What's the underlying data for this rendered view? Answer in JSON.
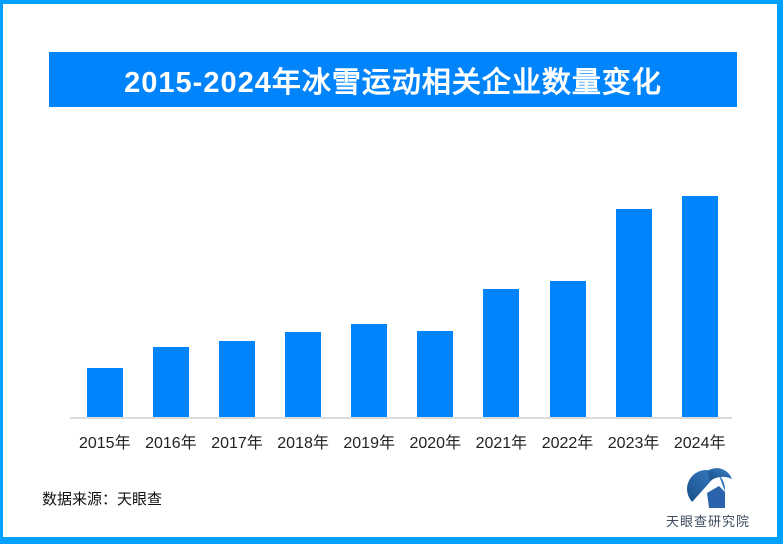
{
  "page": {
    "background_color": "#ffffff",
    "frame_border_color": "#00A0FF"
  },
  "title_banner": {
    "text": "2015-2024年冰雪运动相关企业数量变化",
    "bg_color": "#0084FB",
    "text_color": "#ffffff"
  },
  "chart_data": {
    "type": "bar",
    "title": "2015-2024年冰雪运动相关企业数量变化",
    "categories": [
      "2015年",
      "2016年",
      "2017年",
      "2018年",
      "2019年",
      "2020年",
      "2021年",
      "2022年",
      "2023年",
      "2024年"
    ],
    "values": [
      49,
      70,
      76,
      85,
      93,
      86,
      128,
      136,
      208,
      221
    ],
    "values_unit": "relative bar height in px (no y-axis scale shown in image)",
    "xlabel": "",
    "ylabel": "",
    "y_axis_visible": false,
    "gridlines": false,
    "value_labels_visible": false,
    "legend": null,
    "bar_color": "#0084FB",
    "axis_line_color": "#DCDCDC",
    "x_tick_color": "#222222"
  },
  "footer": {
    "source_label": "数据来源：天眼查",
    "logo_text": "天眼查研究院",
    "logo_gradient_start": "#3A83C9",
    "logo_gradient_end": "#174A85",
    "logo_house_color": "#2B64AD",
    "logo_text_color": "#3D4B5F"
  }
}
